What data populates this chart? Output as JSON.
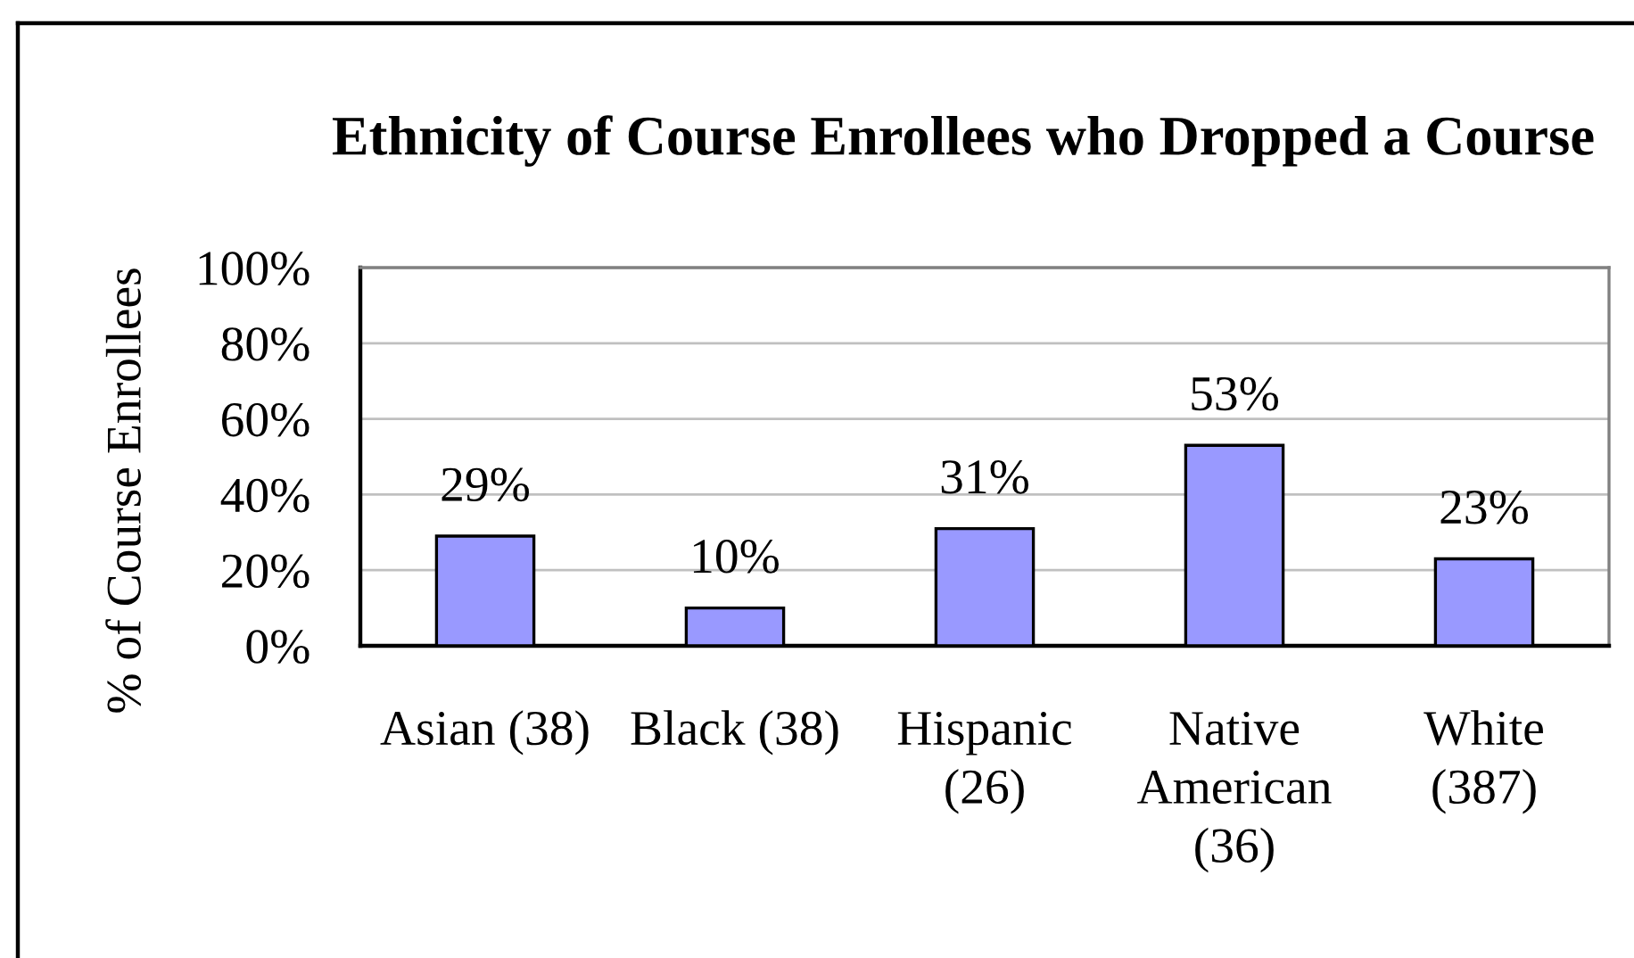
{
  "chart_data": {
    "type": "bar",
    "title": "Ethnicity of Course Enrollees who Dropped a Course",
    "ylabel": "% of Course Enrollees",
    "categories": [
      "Asian (38)",
      "Black (38)",
      "Hispanic\n(26)",
      "Native\nAmerican\n(36)",
      "White\n(387)"
    ],
    "values": [
      29,
      10,
      31,
      53,
      23
    ],
    "value_labels": [
      "29%",
      "10%",
      "31%",
      "53%",
      "23%"
    ],
    "color": "#9999ff",
    "ylim": [
      0,
      100
    ],
    "yticks": [
      {
        "value": 0,
        "label": "0%"
      },
      {
        "value": 20,
        "label": "20%"
      },
      {
        "value": 40,
        "label": "40%"
      },
      {
        "value": 60,
        "label": "60%"
      },
      {
        "value": 80,
        "label": "80%"
      },
      {
        "value": 100,
        "label": "100%"
      }
    ],
    "grid": "y"
  }
}
